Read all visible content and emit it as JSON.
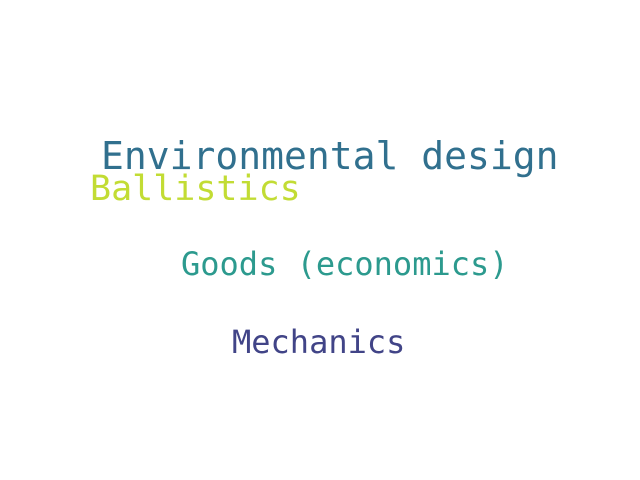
{
  "words": [
    {
      "text": "Environmental design",
      "color": "#31708e"
    },
    {
      "text": "Ballistics",
      "color": "#c2dc34"
    },
    {
      "text": "Goods (economics)",
      "color": "#2c9a8e"
    },
    {
      "text": "Mechanics",
      "color": "#414487"
    }
  ]
}
